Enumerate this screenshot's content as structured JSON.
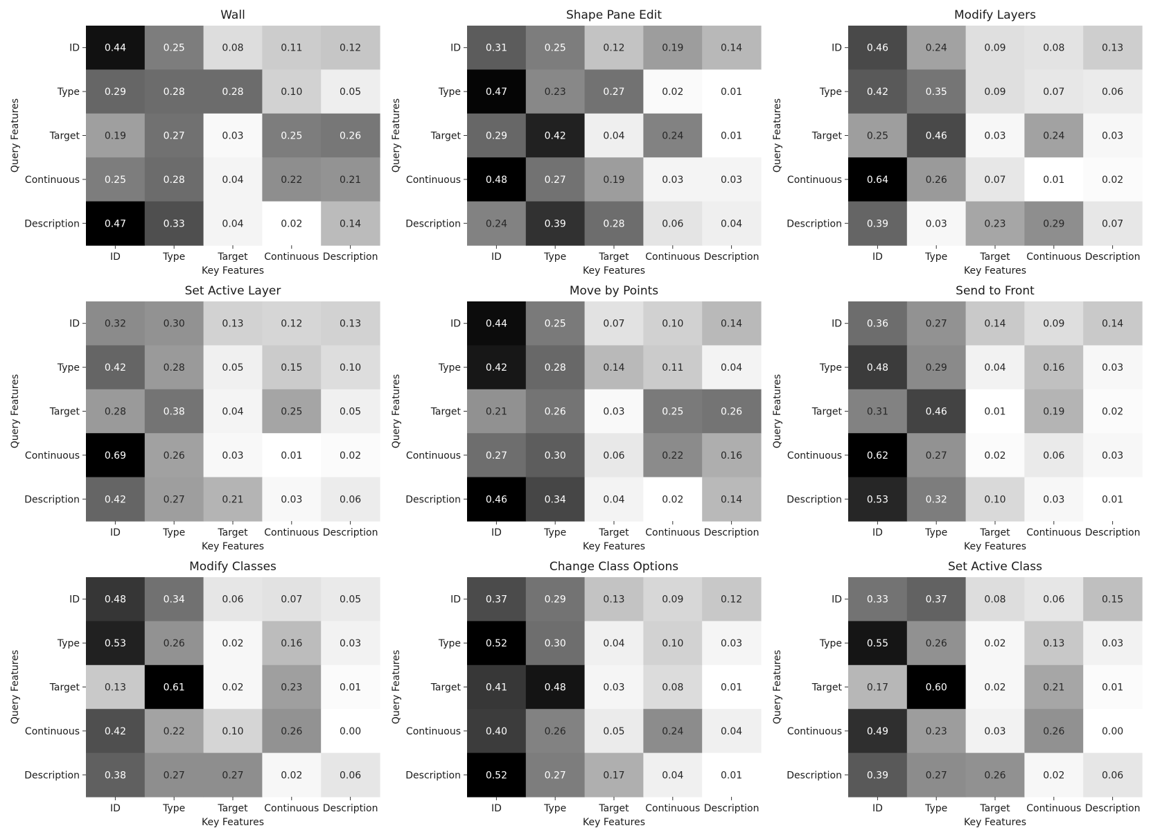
{
  "chart_data": [
    {
      "type": "heatmap",
      "title": "Wall",
      "xlabel": "Key Features",
      "ylabel": "Query Features",
      "x_categories": [
        "ID",
        "Type",
        "Target",
        "Continuous",
        "Description"
      ],
      "y_categories": [
        "ID",
        "Type",
        "Target",
        "Continuous",
        "Description"
      ],
      "values": [
        [
          0.44,
          0.25,
          0.08,
          0.11,
          0.12
        ],
        [
          0.29,
          0.28,
          0.28,
          0.1,
          0.05
        ],
        [
          0.19,
          0.27,
          0.03,
          0.25,
          0.26
        ],
        [
          0.25,
          0.28,
          0.04,
          0.22,
          0.21
        ],
        [
          0.47,
          0.33,
          0.04,
          0.02,
          0.14
        ]
      ]
    },
    {
      "type": "heatmap",
      "title": "Shape Pane Edit",
      "xlabel": "Key Features",
      "ylabel": "Query Features",
      "x_categories": [
        "ID",
        "Type",
        "Target",
        "Continuous",
        "Description"
      ],
      "y_categories": [
        "ID",
        "Type",
        "Target",
        "Continuous",
        "Description"
      ],
      "values": [
        [
          0.31,
          0.25,
          0.12,
          0.19,
          0.14
        ],
        [
          0.47,
          0.23,
          0.27,
          0.02,
          0.01
        ],
        [
          0.29,
          0.42,
          0.04,
          0.24,
          0.01
        ],
        [
          0.48,
          0.27,
          0.19,
          0.03,
          0.03
        ],
        [
          0.24,
          0.39,
          0.28,
          0.06,
          0.04
        ]
      ]
    },
    {
      "type": "heatmap",
      "title": "Modify Layers",
      "xlabel": "Key Features",
      "ylabel": "Query Features",
      "x_categories": [
        "ID",
        "Type",
        "Target",
        "Continuous",
        "Description"
      ],
      "y_categories": [
        "ID",
        "Type",
        "Target",
        "Continuous",
        "Description"
      ],
      "values": [
        [
          0.46,
          0.24,
          0.09,
          0.08,
          0.13
        ],
        [
          0.42,
          0.35,
          0.09,
          0.07,
          0.06
        ],
        [
          0.25,
          0.46,
          0.03,
          0.24,
          0.03
        ],
        [
          0.64,
          0.26,
          0.07,
          0.01,
          0.02
        ],
        [
          0.39,
          0.03,
          0.23,
          0.29,
          0.07
        ]
      ]
    },
    {
      "type": "heatmap",
      "title": "Set Active Layer",
      "xlabel": "Key Features",
      "ylabel": "Query Features",
      "x_categories": [
        "ID",
        "Type",
        "Target",
        "Continuous",
        "Description"
      ],
      "y_categories": [
        "ID",
        "Type",
        "Target",
        "Continuous",
        "Description"
      ],
      "values": [
        [
          0.32,
          0.3,
          0.13,
          0.12,
          0.13
        ],
        [
          0.42,
          0.28,
          0.05,
          0.15,
          0.1
        ],
        [
          0.28,
          0.38,
          0.04,
          0.25,
          0.05
        ],
        [
          0.69,
          0.26,
          0.03,
          0.01,
          0.02
        ],
        [
          0.42,
          0.27,
          0.21,
          0.03,
          0.06
        ]
      ]
    },
    {
      "type": "heatmap",
      "title": "Move by Points",
      "xlabel": "Key Features",
      "ylabel": "Query Features",
      "x_categories": [
        "ID",
        "Type",
        "Target",
        "Continuous",
        "Description"
      ],
      "y_categories": [
        "ID",
        "Type",
        "Target",
        "Continuous",
        "Description"
      ],
      "values": [
        [
          0.44,
          0.25,
          0.07,
          0.1,
          0.14
        ],
        [
          0.42,
          0.28,
          0.14,
          0.11,
          0.04
        ],
        [
          0.21,
          0.26,
          0.03,
          0.25,
          0.26
        ],
        [
          0.27,
          0.3,
          0.06,
          0.22,
          0.16
        ],
        [
          0.46,
          0.34,
          0.04,
          0.02,
          0.14
        ]
      ]
    },
    {
      "type": "heatmap",
      "title": "Send to Front",
      "xlabel": "Key Features",
      "ylabel": "Query Features",
      "x_categories": [
        "ID",
        "Type",
        "Target",
        "Continuous",
        "Description"
      ],
      "y_categories": [
        "ID",
        "Type",
        "Target",
        "Continuous",
        "Description"
      ],
      "values": [
        [
          0.36,
          0.27,
          0.14,
          0.09,
          0.14
        ],
        [
          0.48,
          0.29,
          0.04,
          0.16,
          0.03
        ],
        [
          0.31,
          0.46,
          0.01,
          0.19,
          0.02
        ],
        [
          0.62,
          0.27,
          0.02,
          0.06,
          0.03
        ],
        [
          0.53,
          0.32,
          0.1,
          0.03,
          0.01
        ]
      ]
    },
    {
      "type": "heatmap",
      "title": "Modify Classes",
      "xlabel": "Key Features",
      "ylabel": "Query Features",
      "x_categories": [
        "ID",
        "Type",
        "Target",
        "Continuous",
        "Description"
      ],
      "y_categories": [
        "ID",
        "Type",
        "Target",
        "Continuous",
        "Description"
      ],
      "values": [
        [
          0.48,
          0.34,
          0.06,
          0.07,
          0.05
        ],
        [
          0.53,
          0.26,
          0.02,
          0.16,
          0.03
        ],
        [
          0.13,
          0.61,
          0.02,
          0.23,
          0.01
        ],
        [
          0.42,
          0.22,
          0.1,
          0.26,
          0.0
        ],
        [
          0.38,
          0.27,
          0.27,
          0.02,
          0.06
        ]
      ]
    },
    {
      "type": "heatmap",
      "title": "Change Class Options",
      "xlabel": "Key Features",
      "ylabel": "Query Features",
      "x_categories": [
        "ID",
        "Type",
        "Target",
        "Continuous",
        "Description"
      ],
      "y_categories": [
        "ID",
        "Type",
        "Target",
        "Continuous",
        "Description"
      ],
      "values": [
        [
          0.37,
          0.29,
          0.13,
          0.09,
          0.12
        ],
        [
          0.52,
          0.3,
          0.04,
          0.1,
          0.03
        ],
        [
          0.41,
          0.48,
          0.03,
          0.08,
          0.01
        ],
        [
          0.4,
          0.26,
          0.05,
          0.24,
          0.04
        ],
        [
          0.52,
          0.27,
          0.17,
          0.04,
          0.01
        ]
      ]
    },
    {
      "type": "heatmap",
      "title": "Set Active Class",
      "xlabel": "Key Features",
      "ylabel": "Query Features",
      "x_categories": [
        "ID",
        "Type",
        "Target",
        "Continuous",
        "Description"
      ],
      "y_categories": [
        "ID",
        "Type",
        "Target",
        "Continuous",
        "Description"
      ],
      "values": [
        [
          0.33,
          0.37,
          0.08,
          0.06,
          0.15
        ],
        [
          0.55,
          0.26,
          0.02,
          0.13,
          0.03
        ],
        [
          0.17,
          0.6,
          0.02,
          0.21,
          0.01
        ],
        [
          0.49,
          0.23,
          0.03,
          0.26,
          0.0
        ],
        [
          0.39,
          0.27,
          0.26,
          0.02,
          0.06
        ]
      ]
    }
  ]
}
